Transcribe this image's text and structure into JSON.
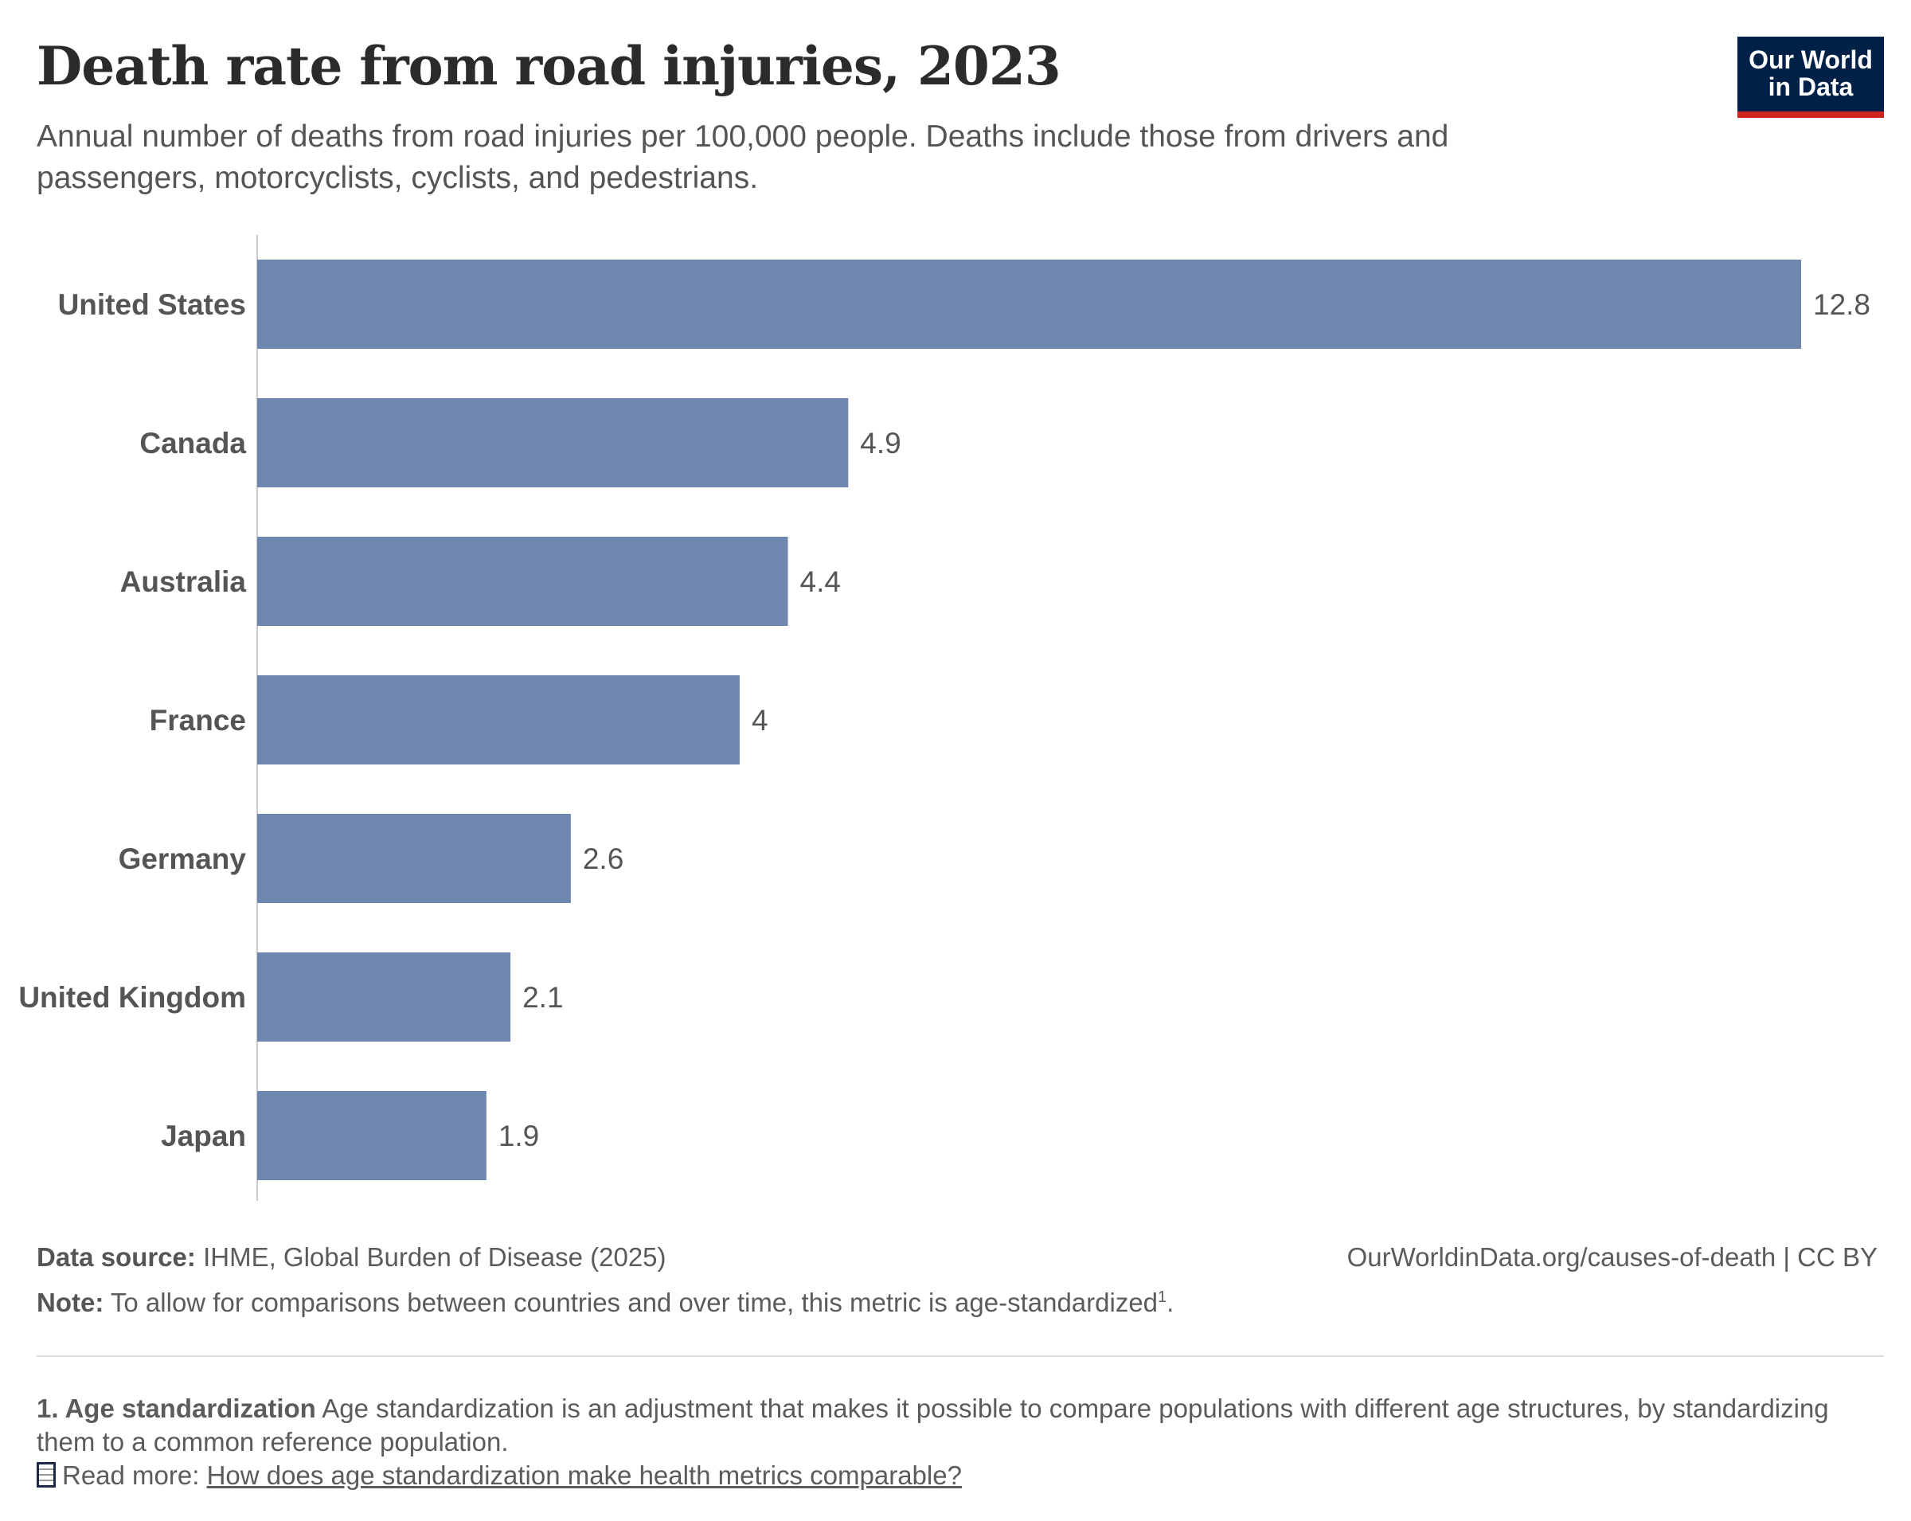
{
  "header": {
    "title": "Death rate from road injuries, 2023",
    "subtitle": "Annual number of deaths from road injuries per 100,000 people. Deaths include those from drivers and passengers, motorcyclists, cyclists, and pedestrians.",
    "logo_line1": "Our World",
    "logo_line2": "in Data"
  },
  "chart_data": {
    "type": "bar",
    "orientation": "horizontal",
    "title": "Death rate from road injuries, 2023",
    "categories": [
      "United States",
      "Canada",
      "Australia",
      "France",
      "Germany",
      "United Kingdom",
      "Japan"
    ],
    "values": [
      12.8,
      4.9,
      4.4,
      4,
      2.6,
      2.1,
      1.9
    ],
    "value_labels": [
      "12.8",
      "4.9",
      "4.4",
      "4",
      "2.6",
      "2.1",
      "1.9"
    ],
    "xlim": [
      0,
      12.8
    ],
    "grid": false,
    "bar_color": "#6f87af"
  },
  "footer": {
    "source_label": "Data source:",
    "source_text": "IHME, Global Burden of Disease (2025)",
    "url_text": "OurWorldinData.org/causes-of-death | CC BY",
    "note_label": "Note:",
    "note_text": "To allow for comparisons between countries and over time, this metric is age-standardized",
    "note_sup": "1",
    "note_end": ".",
    "footnote_label": "1. Age standardization",
    "footnote_text": "Age standardization is an adjustment that makes it possible to compare populations with different age structures, by standardizing them to a common reference population.",
    "read_more_label": "Read more:",
    "read_more_link": "How does age standardization make health metrics comparable?"
  }
}
